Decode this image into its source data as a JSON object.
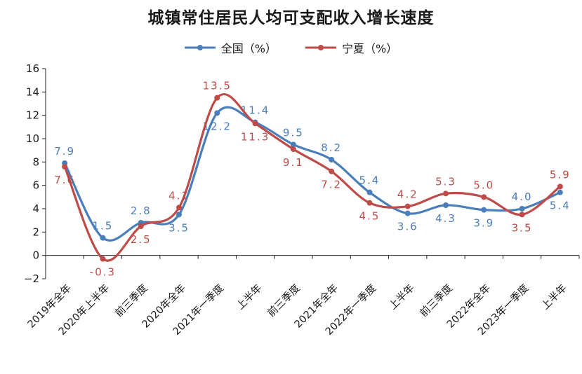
{
  "chart_data": {
    "type": "line",
    "title": "城镇常住居民人均可支配收入增长速度",
    "xlabel": "",
    "ylabel": "",
    "ylim": [
      -2,
      16
    ],
    "yticks": [
      -2,
      0,
      2,
      4,
      6,
      8,
      10,
      12,
      14,
      16
    ],
    "yticklabels": [
      "−2",
      "0",
      "2",
      "4",
      "6",
      "8",
      "10",
      "12",
      "14",
      "16"
    ],
    "grid": false,
    "legend_position": "top-center",
    "categories": [
      "2019年全年",
      "2020年上半年",
      "前三季度",
      "2020年全年",
      "2021年一季度",
      "上半年",
      "前三季度",
      "2021年全年",
      "2022年一季度",
      "上半年",
      "前三季度",
      "2022年全年",
      "2023年一季度",
      "上半年"
    ],
    "series": [
      {
        "name": "全国（%）",
        "color": "#4a7ebb",
        "values": [
          7.9,
          1.5,
          2.8,
          3.5,
          12.2,
          11.4,
          9.5,
          8.2,
          5.4,
          3.6,
          4.3,
          3.9,
          4.0,
          5.4
        ],
        "labels": [
          "7.9",
          "1.5",
          "2.8",
          "3.5",
          "12.2",
          "11.4",
          "9.5",
          "8.2",
          "5.4",
          "3.6",
          "4.3",
          "3.9",
          "4.0",
          "5.4"
        ]
      },
      {
        "name": "宁夏（%）",
        "color": "#be4b48",
        "values": [
          7.6,
          -0.3,
          2.5,
          4.1,
          13.5,
          11.3,
          9.1,
          7.2,
          4.5,
          4.2,
          5.3,
          5.0,
          3.5,
          5.9
        ],
        "labels": [
          "7.6",
          "-0.3",
          "2.5",
          "4.1",
          "13.5",
          "11.3",
          "9.1",
          "7.2",
          "4.5",
          "4.2",
          "5.3",
          "5.0",
          "3.5",
          "5.9"
        ]
      }
    ]
  }
}
